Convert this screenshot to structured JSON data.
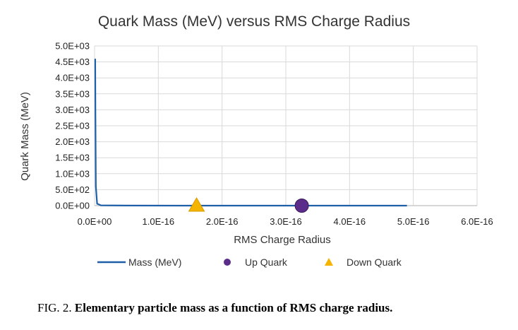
{
  "chart_data": {
    "type": "scatter",
    "title": "Quark Mass (MeV) versus RMS Charge Radius",
    "xlabel": "RMS Charge Radius",
    "ylabel": "Quark Mass (MeV)",
    "xlim": [
      0,
      6e-16
    ],
    "ylim": [
      0,
      5000
    ],
    "x_tick_labels": [
      "0.0E+00",
      "1.0E-16",
      "2.0E-16",
      "3.0E-16",
      "4.0E-16",
      "5.0E-16",
      "6.0E-16"
    ],
    "y_tick_labels": [
      "0.0E+00",
      "5.0E+02",
      "1.0E+03",
      "1.5E+03",
      "2.0E+03",
      "2.5E+03",
      "3.0E+03",
      "3.5E+03",
      "4.0E+03",
      "4.5E+03",
      "5.0E+03"
    ],
    "grid": true,
    "legend_position": "bottom",
    "series": [
      {
        "name": "Mass (MeV)",
        "kind": "line",
        "color": "#1f5fa8",
        "x": [
          1e-18,
          1.3e-18,
          2e-18,
          4e-18,
          1e-17,
          5e-17,
          1.6e-16,
          3.3e-16,
          4.9e-16
        ],
        "y": [
          4600,
          3000,
          600,
          60,
          8,
          2,
          0.5,
          0.2,
          0.1
        ]
      },
      {
        "name": "Up Quark",
        "kind": "marker",
        "marker": "circle",
        "color": "#5b2c8a",
        "x": [
          3.25e-16
        ],
        "y": [
          0
        ]
      },
      {
        "name": "Down Quark",
        "kind": "marker",
        "marker": "triangle",
        "color": "#f5b400",
        "x": [
          1.6e-16
        ],
        "y": [
          0
        ]
      }
    ]
  },
  "caption": {
    "prefix": "FIG. 2.",
    "text": "Elementary particle mass as a function of RMS charge radius."
  }
}
